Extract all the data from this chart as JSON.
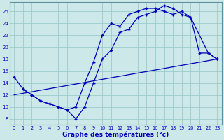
{
  "bg_color": "#cce8e8",
  "grid_color": "#99cccc",
  "line_color": "#0000bb",
  "xlabel": "Graphe des températures (°c)",
  "xlim": [
    -0.5,
    23.5
  ],
  "ylim": [
    7.0,
    27.5
  ],
  "xticks": [
    0,
    1,
    2,
    3,
    4,
    5,
    6,
    7,
    8,
    9,
    10,
    11,
    12,
    13,
    14,
    15,
    16,
    17,
    18,
    19,
    20,
    21,
    22,
    23
  ],
  "yticks": [
    8,
    10,
    12,
    14,
    16,
    18,
    20,
    22,
    24,
    26
  ],
  "series1_x": [
    0,
    1,
    2,
    3,
    4,
    5,
    6,
    7,
    8,
    9,
    10,
    11,
    12,
    13,
    14,
    15,
    16,
    17,
    18,
    19,
    20,
    21,
    22,
    23
  ],
  "series1_y": [
    15,
    13,
    12,
    11,
    10.5,
    10,
    9.5,
    8,
    10,
    14,
    18,
    19.5,
    22.5,
    23,
    25,
    25.5,
    26,
    26.5,
    26,
    25,
    25,
    19,
    18,
    18
  ],
  "series2_x": [
    0,
    1,
    2,
    3,
    4,
    5,
    6,
    7,
    8,
    9,
    10,
    11,
    12,
    13,
    14,
    15,
    16,
    17,
    18,
    19,
    20,
    21,
    22,
    23
  ],
  "series2_y": [
    15,
    13,
    12,
    11,
    10.5,
    10,
    9.5,
    8,
    10,
    14,
    18,
    19.5,
    22.5,
    23,
    25,
    25.5,
    26,
    27,
    26.5,
    25.5,
    25,
    19,
    18,
    18
  ],
  "line1_x": [
    0,
    1,
    2,
    3,
    4,
    5,
    6,
    7,
    8,
    9,
    10,
    11,
    12,
    13,
    14,
    15,
    16,
    17,
    18,
    19,
    20,
    22,
    23
  ],
  "line1_y": [
    15,
    13,
    12,
    11,
    10.5,
    10,
    9.5,
    8,
    10,
    14,
    18,
    19.5,
    22.5,
    23,
    25,
    25.5,
    26,
    27,
    26.5,
    25.5,
    25,
    19,
    18
  ],
  "line2_x": [
    1,
    2,
    3,
    4,
    5,
    6,
    7,
    8,
    9,
    10,
    11,
    12,
    13,
    14,
    15,
    16,
    17,
    18,
    19,
    20,
    21,
    22,
    23
  ],
  "line2_y": [
    13,
    12,
    11,
    10.5,
    10,
    9.5,
    10,
    14,
    17.5,
    22,
    24,
    23.5,
    25.5,
    26,
    26.5,
    26.5,
    26,
    25.5,
    26,
    25,
    19,
    19,
    18
  ],
  "line3_x": [
    0,
    23
  ],
  "line3_y": [
    12,
    18
  ]
}
